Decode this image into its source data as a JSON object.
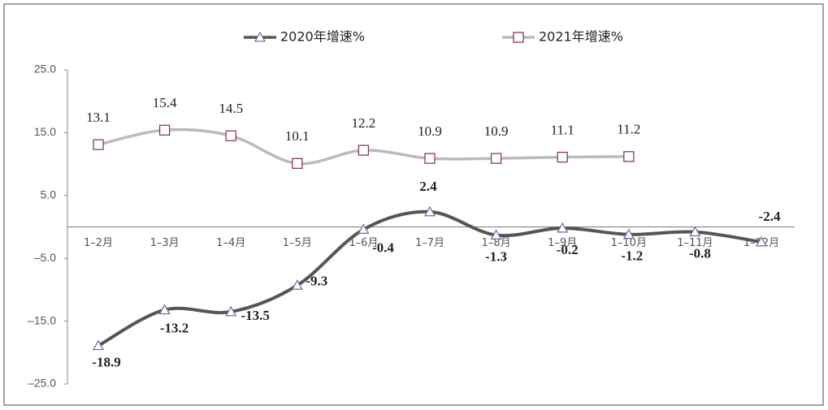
{
  "chart_data": {
    "type": "line",
    "categories": [
      "1–2月",
      "1–3月",
      "1–4月",
      "1–5月",
      "1–6月",
      "1–7月",
      "1–8月",
      "1–9月",
      "1–10月",
      "1–11月",
      "1–12月"
    ],
    "series": [
      {
        "name": "2020年增速%",
        "color": "#555555",
        "values": [
          -18.9,
          -13.2,
          -13.5,
          -9.3,
          -0.4,
          2.4,
          -1.3,
          -0.2,
          -1.2,
          -0.8,
          -2.4
        ]
      },
      {
        "name": "2021年增速%",
        "color": "#bbbbbb",
        "marker_color": "#8b3a5a",
        "values": [
          13.1,
          15.4,
          14.5,
          10.1,
          12.2,
          10.9,
          10.9,
          11.1,
          11.2,
          null,
          null
        ]
      }
    ],
    "ylim": [
      -25,
      25
    ],
    "yticks": [
      {
        "value": 25,
        "label": "25.0"
      },
      {
        "value": 15,
        "label": "15.0"
      },
      {
        "value": 5,
        "label": "5.0"
      },
      {
        "value": -5,
        "label": "–5.0"
      },
      {
        "value": -15,
        "label": "–15.0"
      },
      {
        "value": -25,
        "label": "–25.0"
      }
    ]
  }
}
